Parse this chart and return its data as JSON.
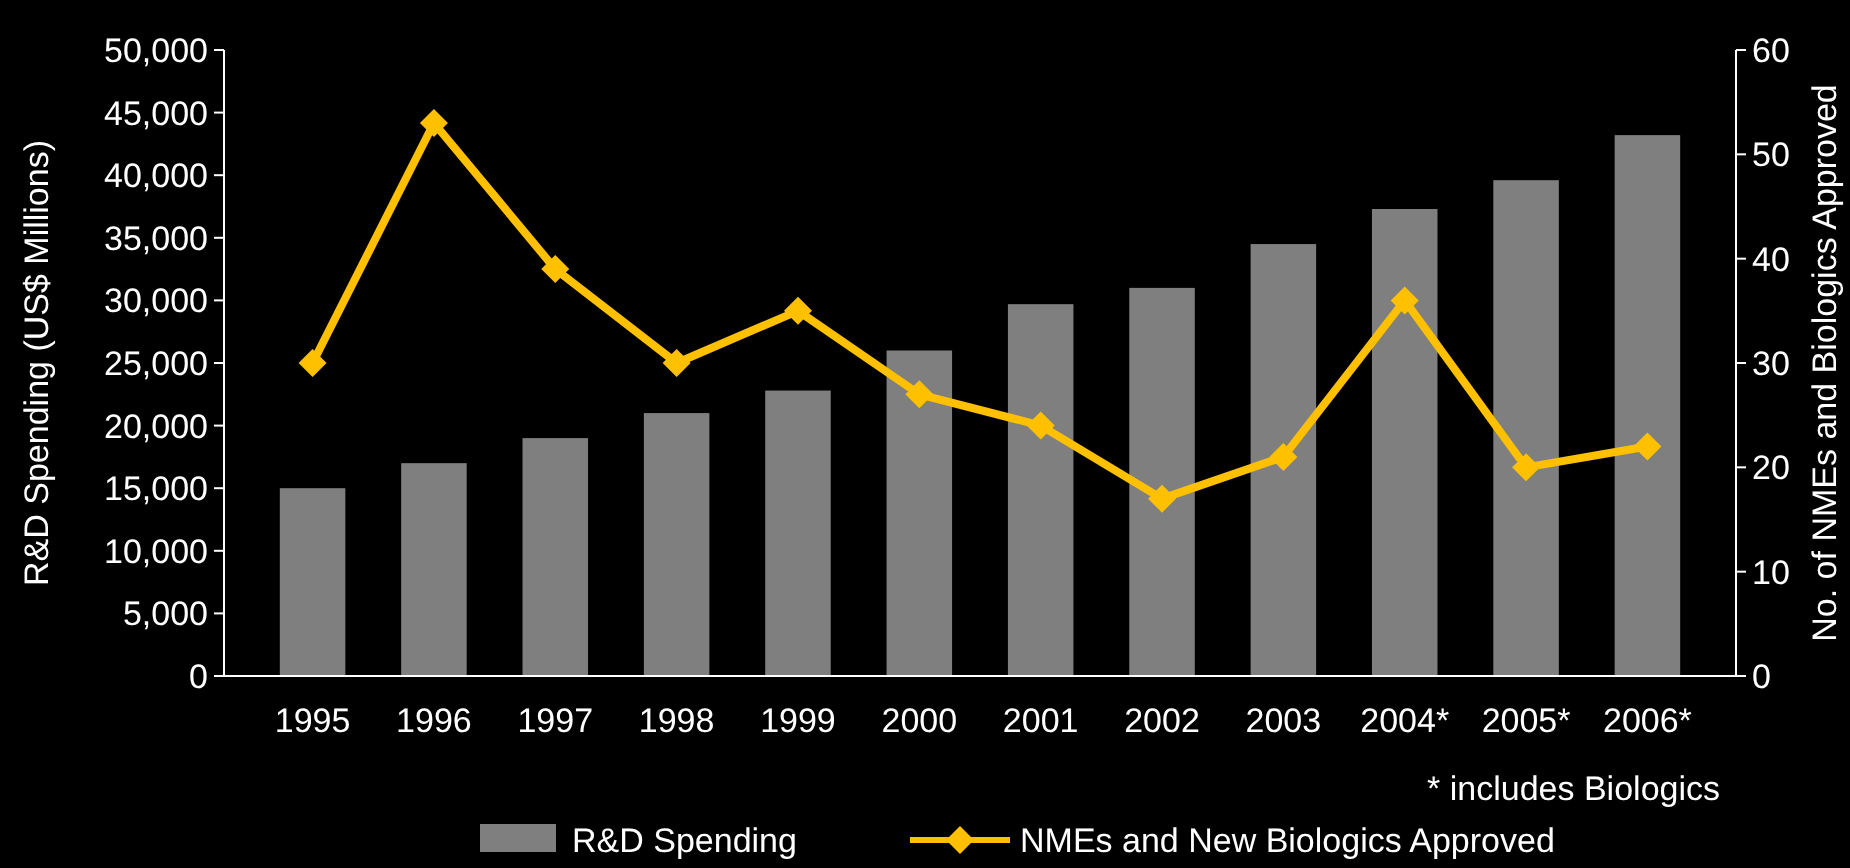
{
  "chart_data": {
    "type": "bar",
    "categories": [
      "1995",
      "1996",
      "1997",
      "1998",
      "1999",
      "2000",
      "2001",
      "2002",
      "2003",
      "2004*",
      "2005*",
      "2006*"
    ],
    "ylabel": "R&D Spending (US$ Millions)",
    "y2label": "No. of NMEs and Biologics Approved",
    "ylim": [
      0,
      50000
    ],
    "yticks": [
      {
        "value": 0,
        "label": "0"
      },
      {
        "value": 5000,
        "label": "5,000"
      },
      {
        "value": 10000,
        "label": "10,000"
      },
      {
        "value": 15000,
        "label": "15,000"
      },
      {
        "value": 20000,
        "label": "20,000"
      },
      {
        "value": 25000,
        "label": "25,000"
      },
      {
        "value": 30000,
        "label": "30,000"
      },
      {
        "value": 35000,
        "label": "35,000"
      },
      {
        "value": 40000,
        "label": "40,000"
      },
      {
        "value": 45000,
        "label": "45,000"
      },
      {
        "value": 50000,
        "label": "50,000"
      }
    ],
    "y2lim": [
      0,
      60
    ],
    "y2ticks": [
      0,
      10,
      20,
      30,
      40,
      50,
      60
    ],
    "series": [
      {
        "name": "R&D Spending",
        "color": "#7f7f7f",
        "values": [
          15000,
          17000,
          19000,
          21000,
          22800,
          26000,
          29700,
          31000,
          34500,
          37300,
          39600,
          43200
        ]
      },
      {
        "name": "NMEs and New Biologics Approved",
        "type": "line",
        "axis": "y2",
        "color": "#ffc000",
        "marker": "diamond",
        "values": [
          30,
          53,
          39,
          30,
          35,
          27,
          24,
          17,
          21,
          36,
          20,
          22
        ]
      }
    ],
    "annotations": [
      "* includes Biologics"
    ],
    "legend": "bottom",
    "grid": false
  }
}
